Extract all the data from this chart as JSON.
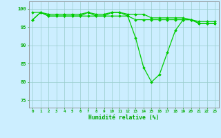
{
  "x": [
    0,
    1,
    2,
    3,
    4,
    5,
    6,
    7,
    8,
    9,
    10,
    11,
    12,
    13,
    14,
    15,
    16,
    17,
    18,
    19,
    20,
    21,
    22,
    23
  ],
  "y_top": [
    99,
    99,
    98.5,
    98.5,
    98.5,
    98.5,
    98.5,
    99,
    98.5,
    98.5,
    99,
    99,
    98.5,
    98.5,
    98.5,
    97.5,
    97.5,
    97.5,
    97.5,
    97.5,
    97,
    96.5,
    96.5,
    96.5
  ],
  "y_mid": [
    97,
    99,
    98,
    98,
    98,
    98,
    98,
    98,
    98,
    98,
    98,
    98,
    98,
    97,
    97,
    97,
    97,
    97,
    97,
    97,
    97,
    96,
    96,
    96
  ],
  "y_bot": [
    97,
    99,
    98,
    98,
    98,
    98,
    98,
    99,
    98,
    98,
    99,
    99,
    98,
    92,
    84,
    80,
    82,
    88,
    94,
    97,
    97,
    96,
    96,
    96
  ],
  "line_color": "#00cc00",
  "marker": "D",
  "marker_size": 2.0,
  "bg_color": "#cceeff",
  "grid_color": "#99cccc",
  "ylabel_ticks": [
    75,
    80,
    85,
    90,
    95,
    100
  ],
  "ylim": [
    73,
    102
  ],
  "xlim": [
    -0.5,
    23.5
  ],
  "xlabel": "Humidité relative (%)",
  "xlabel_color": "#00aa00",
  "tick_color": "#00aa00",
  "axis_color": "#888888"
}
